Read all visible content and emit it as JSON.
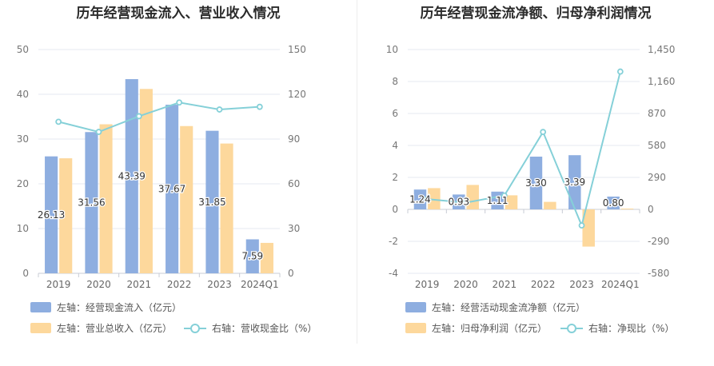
{
  "chart_data": [
    {
      "type": "bar",
      "title": "历年经营现金流入、营业收入情况",
      "categories": [
        "2019",
        "2020",
        "2021",
        "2022",
        "2023",
        "2024Q1"
      ],
      "y_left": {
        "min": 0,
        "max": 50,
        "ticks": [
          0,
          10,
          20,
          30,
          40,
          50
        ]
      },
      "y_right": {
        "min": 0,
        "max": 150,
        "ticks": [
          0,
          30,
          60,
          90,
          120,
          150
        ]
      },
      "series": [
        {
          "name": "左轴：经营现金流入（亿元）",
          "kind": "bar",
          "axis": "left",
          "color": "#8eaee0",
          "values": [
            26.13,
            31.56,
            43.39,
            37.67,
            31.85,
            7.59
          ],
          "labels": [
            "26.13",
            "31.56",
            "43.39",
            "37.67",
            "31.85",
            "7.59"
          ]
        },
        {
          "name": "左轴：营业总收入（亿元）",
          "kind": "bar",
          "axis": "left",
          "color": "#fdd89c",
          "values": [
            25.7,
            33.3,
            41.2,
            32.9,
            29.0,
            6.8
          ]
        },
        {
          "name": "右轴：营收现金比（%）",
          "kind": "line",
          "axis": "right",
          "color": "#85d0d8",
          "values": [
            101.6,
            94.8,
            105.3,
            114.5,
            109.8,
            111.6
          ]
        }
      ],
      "legend_rows": [
        [
          "0"
        ],
        [
          "1",
          "2"
        ]
      ],
      "grid": true,
      "legend": "bottom-left"
    },
    {
      "type": "bar",
      "title": "历年经营现金流净额、归母净利润情况",
      "categories": [
        "2019",
        "2020",
        "2021",
        "2022",
        "2023",
        "2024Q1"
      ],
      "y_left": {
        "min": -4,
        "max": 10,
        "ticks": [
          -4,
          -2,
          0,
          2,
          4,
          6,
          8,
          10
        ]
      },
      "y_right": {
        "min": -580,
        "max": 1450,
        "ticks": [
          -580,
          -290,
          0,
          290,
          580,
          870,
          1160,
          1450
        ]
      },
      "series": [
        {
          "name": "左轴：经营活动现金流净额（亿元）",
          "kind": "bar",
          "axis": "left",
          "color": "#8eaee0",
          "values": [
            1.24,
            0.93,
            1.11,
            3.3,
            3.39,
            0.8
          ],
          "labels": [
            "1.24",
            "0.93",
            "1.11",
            "3.30",
            "3.39",
            "0.80"
          ]
        },
        {
          "name": "左轴：归母净利润（亿元）",
          "kind": "bar",
          "axis": "left",
          "color": "#fdd89c",
          "values": [
            1.33,
            1.53,
            0.88,
            0.47,
            -2.33,
            0.05
          ]
        },
        {
          "name": "右轴：净现比（%）",
          "kind": "line",
          "axis": "right",
          "color": "#85d0d8",
          "values": [
            93,
            61,
            126,
            702,
            -146,
            1250
          ]
        }
      ],
      "legend_rows": [
        [
          "0"
        ],
        [
          "1",
          "2"
        ]
      ],
      "grid": true,
      "legend": "bottom-left"
    }
  ]
}
